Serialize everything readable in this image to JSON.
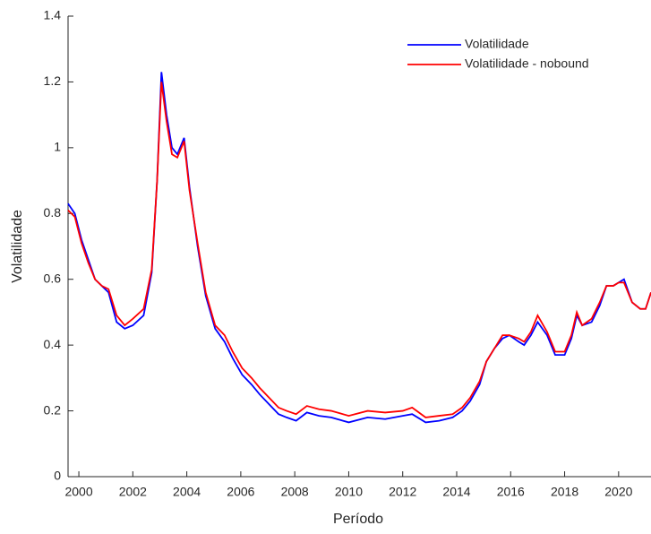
{
  "chart_data": {
    "type": "line",
    "x_label": "Período",
    "y_label": "Volatilidade",
    "x": [
      1999.6,
      1999.85,
      2000.1,
      2000.35,
      2000.6,
      2000.85,
      2001.1,
      2001.4,
      2001.7,
      2002.0,
      2002.4,
      2002.7,
      2002.9,
      2003.06,
      2003.25,
      2003.45,
      2003.65,
      2003.9,
      2004.1,
      2004.4,
      2004.7,
      2005.05,
      2005.4,
      2005.7,
      2006.05,
      2006.4,
      2006.7,
      2007.05,
      2007.4,
      2007.7,
      2008.05,
      2008.45,
      2008.9,
      2009.35,
      2010.0,
      2010.7,
      2011.35,
      2012.0,
      2012.35,
      2012.85,
      2013.35,
      2013.85,
      2014.2,
      2014.5,
      2014.85,
      2015.1,
      2015.4,
      2015.7,
      2015.95,
      2016.3,
      2016.5,
      2016.75,
      2017.0,
      2017.35,
      2017.65,
      2018.0,
      2018.25,
      2018.45,
      2018.65,
      2019.0,
      2019.3,
      2019.55,
      2019.8,
      2020.0,
      2020.2,
      2020.5,
      2020.8,
      2021.0,
      2021.2
    ],
    "series": [
      {
        "name": "Volatilidade",
        "color": "#0000ff",
        "values": [
          0.83,
          0.8,
          0.72,
          0.66,
          0.6,
          0.58,
          0.56,
          0.47,
          0.45,
          0.46,
          0.49,
          0.62,
          0.9,
          1.23,
          1.1,
          1.0,
          0.98,
          1.03,
          0.88,
          0.7,
          0.55,
          0.45,
          0.41,
          0.36,
          0.31,
          0.28,
          0.25,
          0.22,
          0.19,
          0.18,
          0.17,
          0.195,
          0.185,
          0.18,
          0.165,
          0.18,
          0.175,
          0.185,
          0.19,
          0.165,
          0.17,
          0.18,
          0.2,
          0.23,
          0.28,
          0.35,
          0.39,
          0.42,
          0.43,
          0.41,
          0.4,
          0.43,
          0.47,
          0.43,
          0.37,
          0.37,
          0.42,
          0.49,
          0.46,
          0.47,
          0.52,
          0.58,
          0.58,
          0.59,
          0.6,
          0.53,
          0.51,
          0.51,
          0.56
        ]
      },
      {
        "name": "Volatilidade - nobound",
        "color": "#ff0000",
        "values": [
          0.81,
          0.79,
          0.71,
          0.65,
          0.6,
          0.58,
          0.57,
          0.49,
          0.46,
          0.48,
          0.51,
          0.63,
          0.9,
          1.2,
          1.08,
          0.98,
          0.97,
          1.02,
          0.87,
          0.71,
          0.56,
          0.46,
          0.43,
          0.38,
          0.33,
          0.3,
          0.27,
          0.24,
          0.21,
          0.2,
          0.19,
          0.215,
          0.205,
          0.2,
          0.185,
          0.2,
          0.195,
          0.2,
          0.21,
          0.18,
          0.185,
          0.19,
          0.21,
          0.24,
          0.29,
          0.35,
          0.39,
          0.43,
          0.43,
          0.42,
          0.41,
          0.44,
          0.49,
          0.44,
          0.38,
          0.38,
          0.43,
          0.5,
          0.46,
          0.48,
          0.53,
          0.58,
          0.58,
          0.59,
          0.59,
          0.53,
          0.51,
          0.51,
          0.56
        ]
      }
    ],
    "xlim": [
      1999.6,
      2021.2
    ],
    "ylim": [
      0,
      1.4
    ],
    "xticks": [
      2000,
      2002,
      2004,
      2006,
      2008,
      2010,
      2012,
      2014,
      2016,
      2018,
      2020
    ],
    "yticks": [
      0,
      0.2,
      0.4,
      0.6,
      0.8,
      1,
      1.2,
      1.4
    ],
    "legend": "top-right",
    "grid": false
  }
}
